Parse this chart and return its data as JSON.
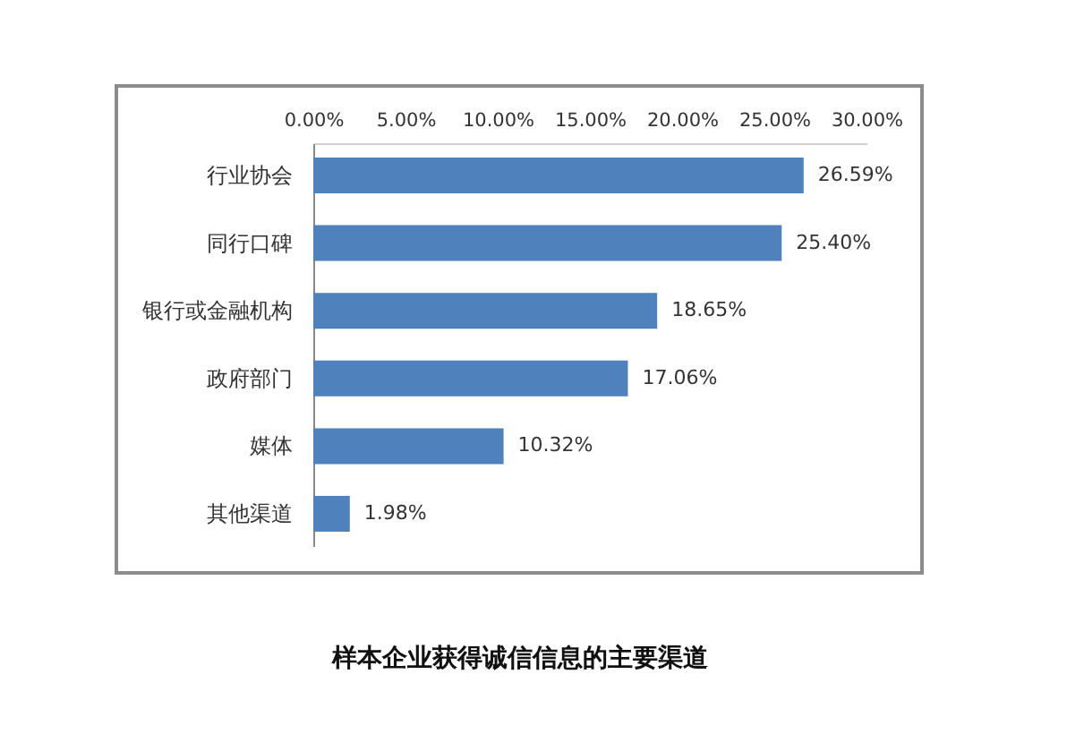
{
  "chart_data": {
    "type": "bar",
    "orientation": "horizontal",
    "title": "样本企业获得诚信信息的主要渠道",
    "categories": [
      "行业协会",
      "同行口碑",
      "银行或金融机构",
      "政府部门",
      "媒体",
      "其他渠道"
    ],
    "values": [
      26.59,
      25.4,
      18.65,
      17.06,
      10.32,
      1.98
    ],
    "color": "#4f81bd",
    "value_labels": [
      "26.59%",
      "25.40%",
      "18.65%",
      "17.06%",
      "10.32%",
      "1.98%"
    ],
    "xlim": [
      0,
      30
    ],
    "xticks": [
      {
        "value": 0,
        "label": "0.00%"
      },
      {
        "value": 5,
        "label": "5.00%"
      },
      {
        "value": 10,
        "label": "10.00%"
      },
      {
        "value": 15,
        "label": "15.00%"
      },
      {
        "value": 20,
        "label": "20.00%"
      },
      {
        "value": 25,
        "label": "25.00%"
      },
      {
        "value": 30,
        "label": "30.00%"
      }
    ]
  }
}
